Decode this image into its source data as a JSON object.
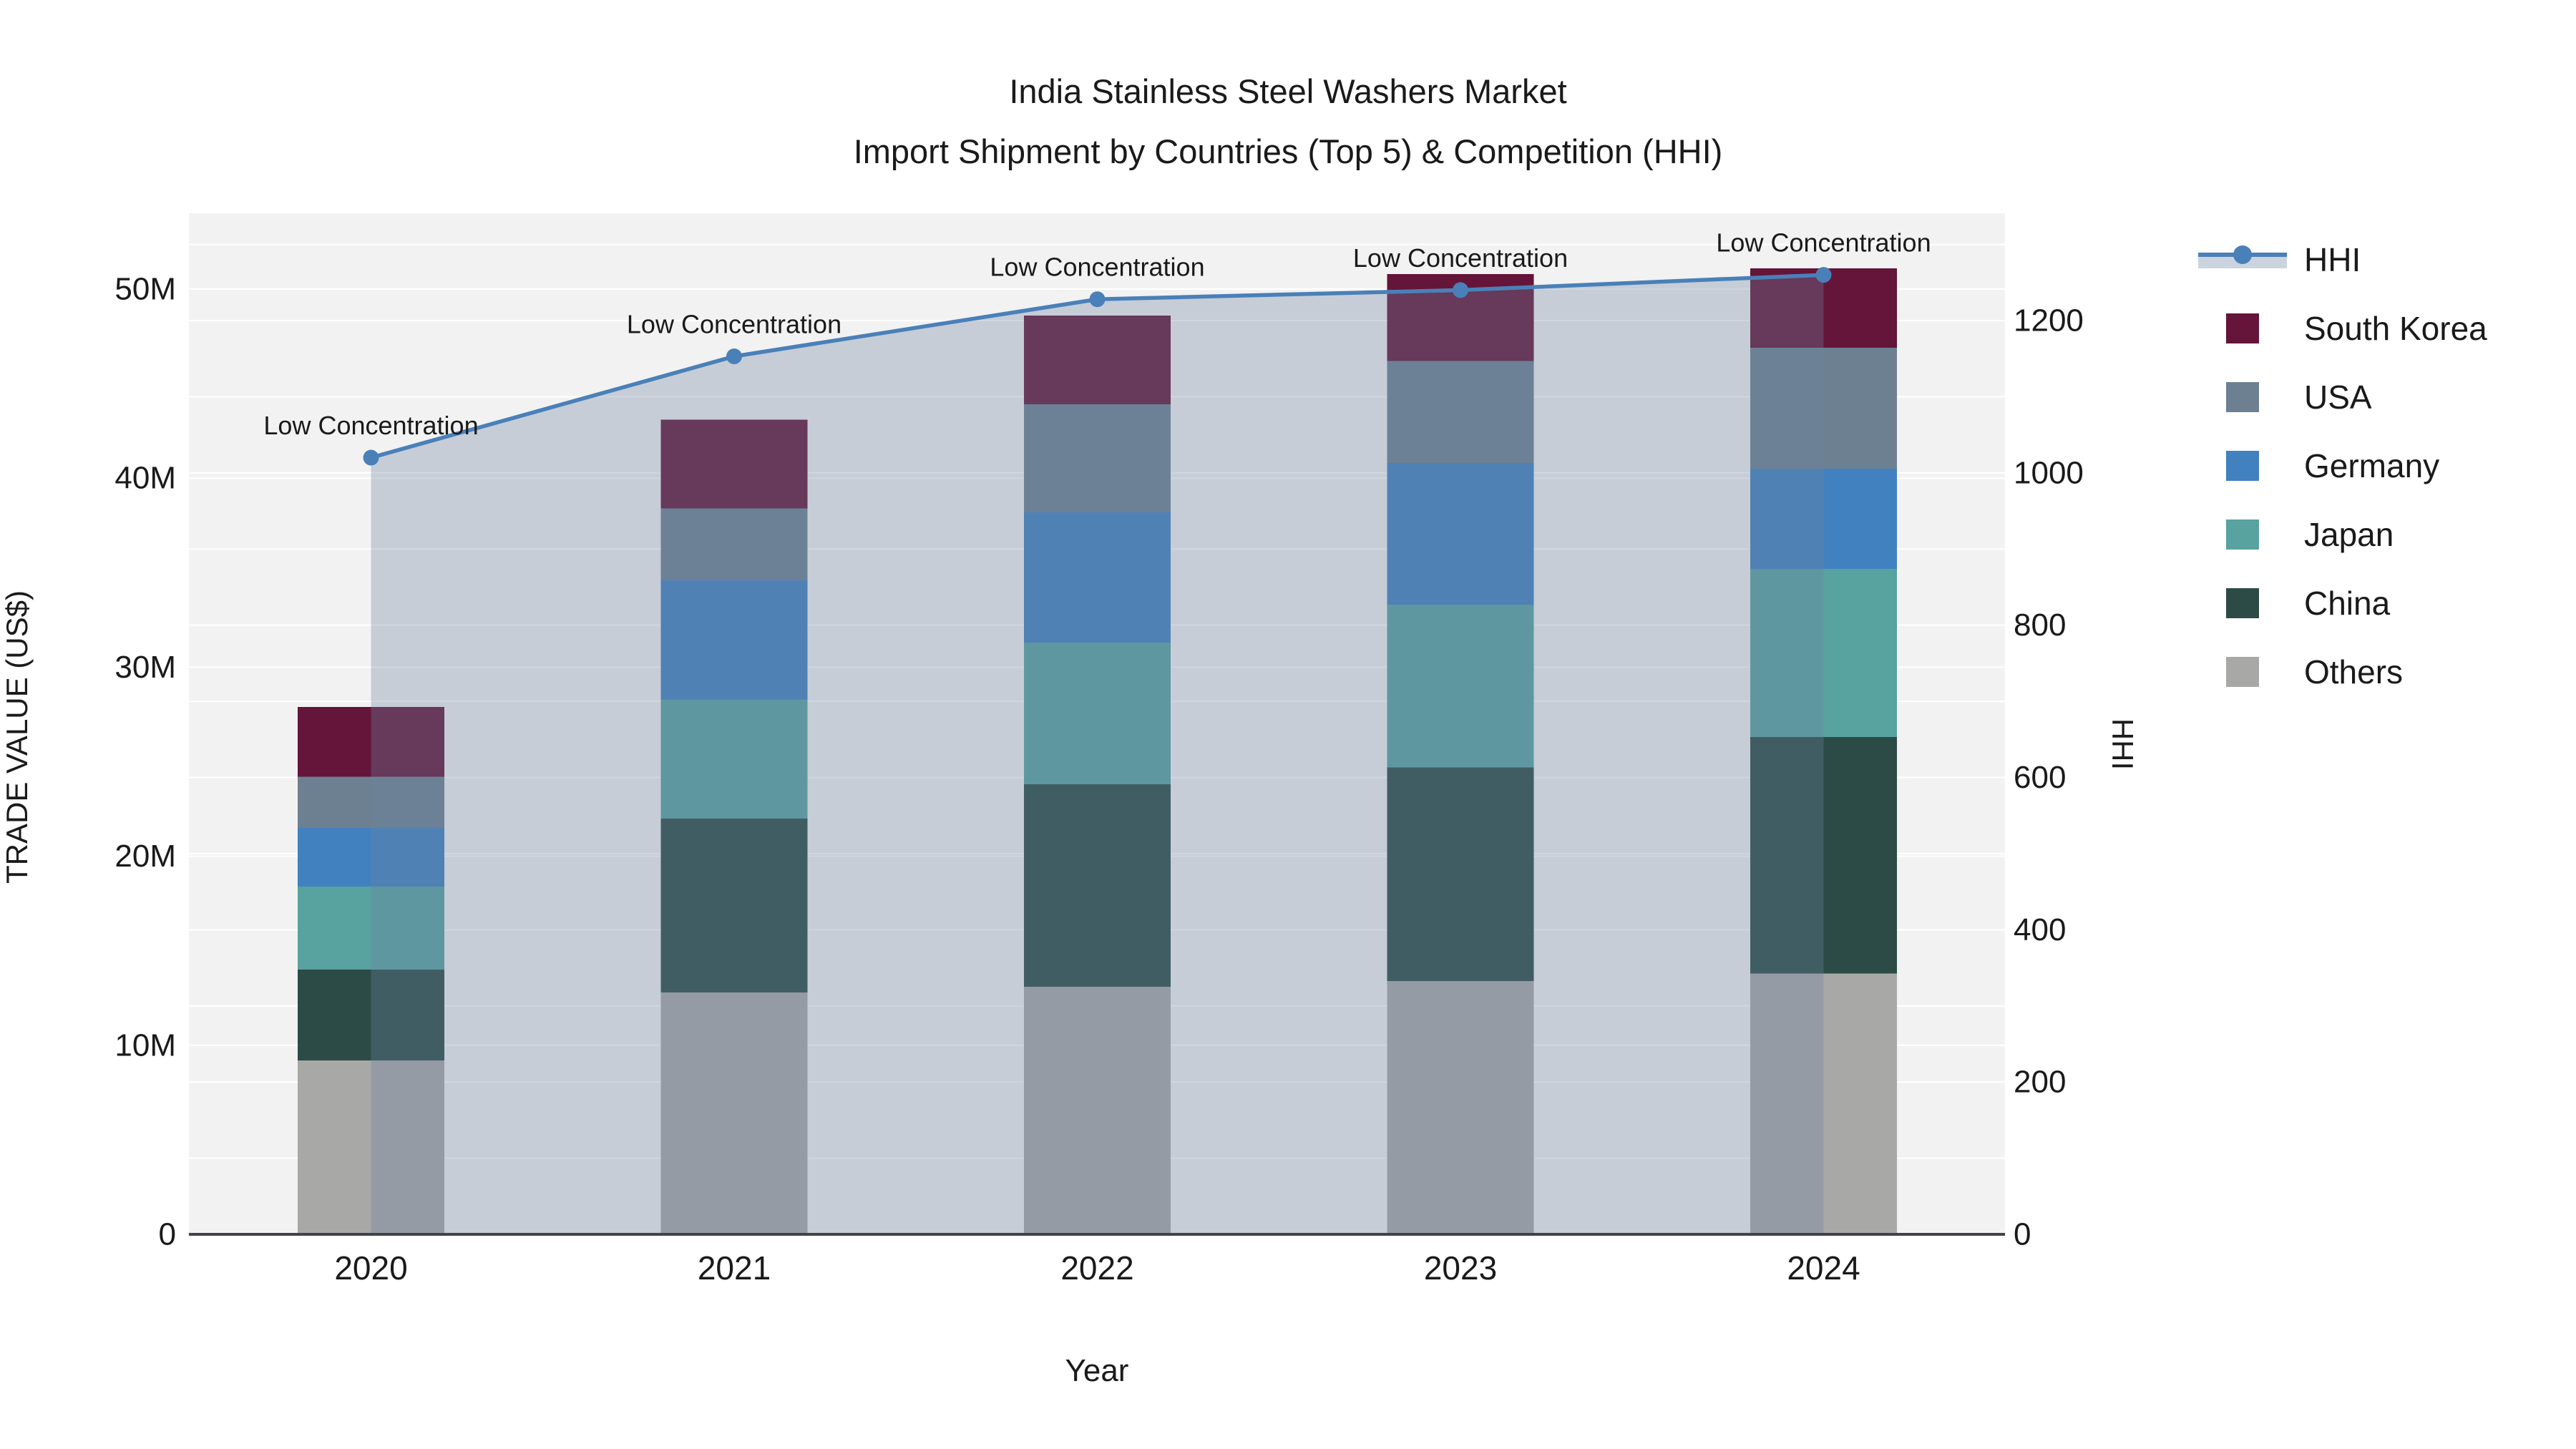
{
  "title": {
    "line1": "India Stainless Steel Washers Market",
    "line2": "Import Shipment by Countries (Top 5) & Competition (HHI)"
  },
  "chart_data": {
    "type": "bar+line",
    "stacked": true,
    "categories": [
      "2020",
      "2021",
      "2022",
      "2023",
      "2024"
    ],
    "xlabel": "Year",
    "ylabel": "TRADE VALUE (US$)",
    "y2label": "HHI",
    "ylim_million_usd": [
      0,
      54
    ],
    "y2lim_hhi": [
      0,
      1340
    ],
    "ytick_labels": [
      "0",
      "10M",
      "20M",
      "30M",
      "40M",
      "50M"
    ],
    "ytick_values_million": [
      0,
      10,
      20,
      30,
      40,
      50
    ],
    "y2tick_labels": [
      "0",
      "200",
      "400",
      "600",
      "800",
      "1000",
      "1200"
    ],
    "y2tick_values": [
      0,
      200,
      400,
      600,
      800,
      1000,
      1200
    ],
    "series": [
      {
        "name": "Others",
        "color": "#a8a8a6",
        "values_million_usd": [
          9.2,
          12.8,
          13.1,
          13.4,
          13.8
        ]
      },
      {
        "name": "China",
        "color": "#2c4b46",
        "values_million_usd": [
          4.8,
          9.2,
          10.7,
          11.3,
          12.5
        ]
      },
      {
        "name": "Japan",
        "color": "#58a2a0",
        "values_million_usd": [
          4.4,
          6.3,
          7.5,
          8.6,
          8.9
        ]
      },
      {
        "name": "Germany",
        "color": "#4181bf",
        "values_million_usd": [
          3.1,
          6.3,
          6.9,
          7.5,
          5.3
        ]
      },
      {
        "name": "USA",
        "color": "#6d8091",
        "values_million_usd": [
          2.7,
          3.8,
          5.7,
          5.4,
          6.4
        ]
      },
      {
        "name": "South Korea",
        "color": "#641539",
        "values_million_usd": [
          3.7,
          4.7,
          4.7,
          4.6,
          4.2
        ]
      }
    ],
    "line_series": {
      "name": "HHI",
      "values": [
        1020,
        1153,
        1228,
        1240,
        1260
      ],
      "color": "#4a80b8",
      "fill_color": "rgba(110,132,160,0.33)",
      "legend_band_color": "#cbd4de"
    },
    "annotations": [
      {
        "x": "2020",
        "text": "Low Concentration"
      },
      {
        "x": "2021",
        "text": "Low Concentration"
      },
      {
        "x": "2022",
        "text": "Low Concentration"
      },
      {
        "x": "2023",
        "text": "Low Concentration"
      },
      {
        "x": "2024",
        "text": "Low Concentration"
      }
    ],
    "legend": [
      {
        "name": "HHI",
        "kind": "line"
      },
      {
        "name": "South Korea",
        "kind": "square",
        "color": "#641539"
      },
      {
        "name": "USA",
        "kind": "square",
        "color": "#6d8091"
      },
      {
        "name": "Germany",
        "kind": "square",
        "color": "#4181bf"
      },
      {
        "name": "Japan",
        "kind": "square",
        "color": "#58a2a0"
      },
      {
        "name": "China",
        "kind": "square",
        "color": "#2c4b46"
      },
      {
        "name": "Others",
        "kind": "square",
        "color": "#a8a8a6"
      }
    ],
    "legend_position": "right",
    "grid": {
      "on": true,
      "color": "#ffffff"
    },
    "plot_background": "#f2f2f2",
    "axis_line_color": "#40444a",
    "text_color": "#1a1a1a"
  }
}
